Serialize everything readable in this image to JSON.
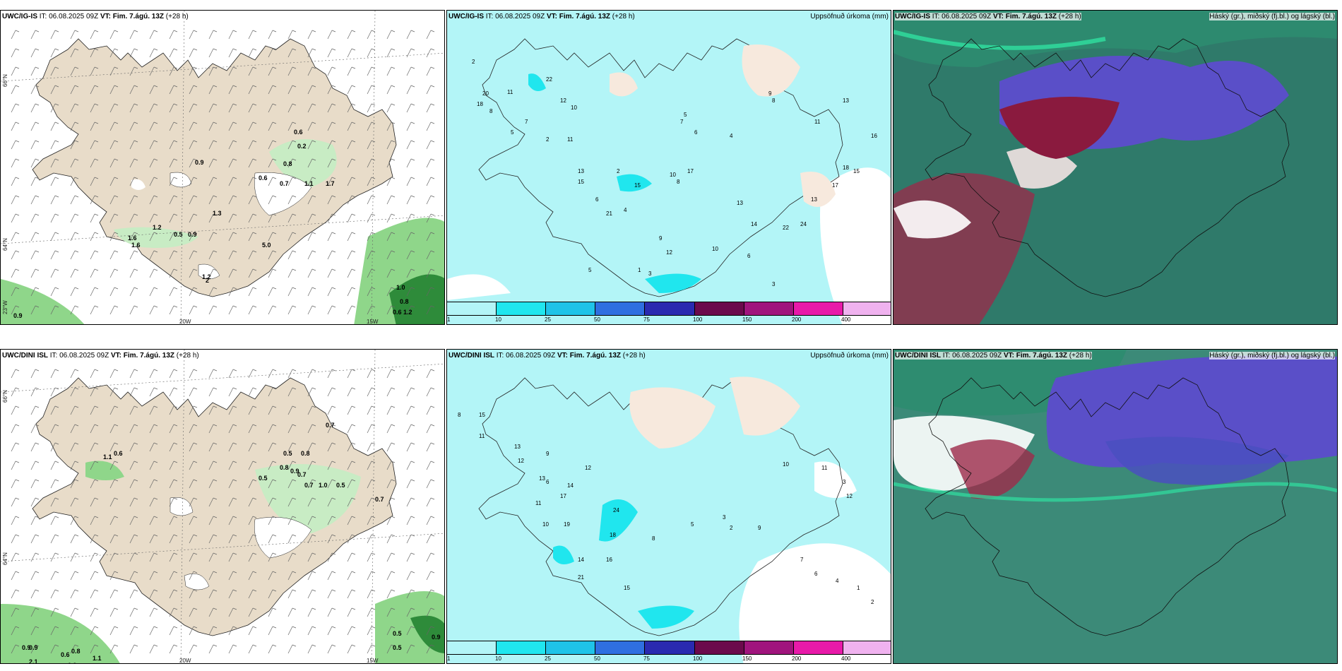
{
  "panels": [
    {
      "id": "p1",
      "model": "UWC/IG-IS",
      "it_label": "IT:",
      "it_value": "06.08.2025 09Z",
      "vt_label": "VT:",
      "vt_value": "Fim. 7.ágú. 13Z",
      "lead": "(+28 h)",
      "product": ""
    },
    {
      "id": "p2",
      "model": "UWC/IG-IS",
      "it_label": "IT:",
      "it_value": "06.08.2025 09Z",
      "vt_label": "VT:",
      "vt_value": "Fim. 7.ágú. 13Z",
      "lead": "(+28 h)",
      "product": "Uppsöfnuð úrkoma (mm)"
    },
    {
      "id": "p3",
      "model": "UWC/IG-IS",
      "it_label": "IT:",
      "it_value": "06.08.2025 09Z",
      "vt_label": "VT:",
      "vt_value": "Fim. 7.ágú. 13Z",
      "lead": "(+28 h)",
      "product": "Háský (gr.), miðský (fj.bl.) og lágský (bl.)"
    },
    {
      "id": "p4",
      "model": "UWC/DINI ISL",
      "it_label": "IT:",
      "it_value": "06.08.2025 09Z",
      "vt_label": "VT:",
      "vt_value": "Fim. 7.ágú. 13Z",
      "lead": "(+28 h)",
      "product": ""
    },
    {
      "id": "p5",
      "model": "UWC/DINI ISL",
      "it_label": "IT:",
      "it_value": "06.08.2025 09Z",
      "vt_label": "VT:",
      "vt_value": "Fim. 7.ágú. 13Z",
      "lead": "(+28 h)",
      "product": "Uppsöfnuð úrkoma (mm)"
    },
    {
      "id": "p6",
      "model": "UWC/DINI ISL",
      "it_label": "IT:",
      "it_value": "06.08.2025 09Z",
      "vt_label": "VT:",
      "vt_value": "Fim. 7.ágú. 13Z",
      "lead": "(+28 h)",
      "product": "Háský (gr.), miðský (fj.bl.) og lágský (bl.)"
    }
  ],
  "axis_labels": {
    "lat_66": "66°N",
    "lat_64": "64°N",
    "lat_23": "23°W",
    "lon_20": "20W",
    "lon_15": "15W"
  },
  "precip_legend": {
    "labels": [
      "1",
      "10",
      "25",
      "50",
      "75",
      "100",
      "150",
      "200",
      "400"
    ],
    "colors": [
      "#b3f5f7",
      "#20e6ee",
      "#1fc3e8",
      "#2f6fe0",
      "#2a2ab0",
      "#6b0a4c",
      "#a0157d",
      "#e81aa9",
      "#f0b2ef"
    ]
  },
  "precip_values": {
    "p2": [
      "2",
      "20",
      "18",
      "8",
      "11",
      "22",
      "12",
      "10",
      "7",
      "5",
      "2",
      "11",
      "13",
      "15",
      "6",
      "4",
      "10",
      "8",
      "17",
      "15",
      "21",
      "9",
      "12",
      "10",
      "6",
      "3",
      "13",
      "14",
      "22",
      "24",
      "13",
      "17",
      "18",
      "15",
      "16",
      "11",
      "13",
      "9",
      "8",
      "7",
      "5",
      "6",
      "4",
      "2",
      "1",
      "3",
      "5"
    ],
    "p5": [
      "8",
      "15",
      "11",
      "13",
      "12",
      "9",
      "6",
      "11",
      "13",
      "17",
      "14",
      "12",
      "19",
      "10",
      "24",
      "18",
      "21",
      "14",
      "16",
      "15",
      "8",
      "5",
      "3",
      "2",
      "9",
      "7",
      "6",
      "4",
      "1",
      "2",
      "3",
      "12",
      "11",
      "10"
    ]
  },
  "wind_values": {
    "p1": [
      "0.6",
      "0.2",
      "0.9",
      "0.8",
      "0.6",
      "0.7",
      "1.1",
      "1.7",
      "1.3",
      "1.2",
      "0.5",
      "1.6",
      "0.9",
      "5.0",
      "1.6",
      "1.2",
      "1.0",
      "0.8",
      "0.6",
      "1.2",
      "0.9",
      "2"
    ],
    "p4": [
      "0.7",
      "0.5",
      "0.8",
      "0.8",
      "0.9",
      "0.7",
      "0.5",
      "0.7",
      "1.0",
      "0.5",
      "1.1",
      "0.6",
      "0.7",
      "0.9",
      "0.9",
      "0.6",
      "0.8",
      "1.1",
      "0.9",
      "0.5",
      "0.9",
      "0.5",
      "2.1"
    ]
  },
  "colors": {
    "land": "#e8dcc9",
    "white": "#ffffff",
    "green_light": "#c8ecc4",
    "green_mid": "#8fd68a",
    "green_dark": "#2e8b3a",
    "cyan_light": "#b3f5f7",
    "cyan": "#20e6ee",
    "cloud_high": "#2f7a6a",
    "cloud_mid": "#5a4fc8",
    "cloud_low": "#9e2a4a"
  }
}
